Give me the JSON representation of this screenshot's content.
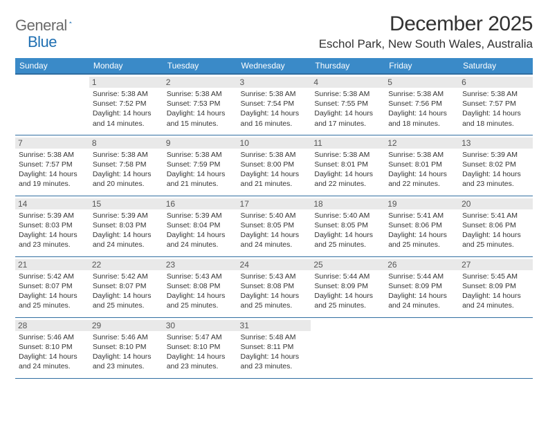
{
  "brand": {
    "part1": "General",
    "part2": "Blue"
  },
  "title": "December 2025",
  "location": "Eschol Park, New South Wales, Australia",
  "colors": {
    "header_bg": "#3a8ac8",
    "header_border": "#2f6da0",
    "daynum_bg": "#e9e9e9",
    "text": "#333333",
    "logo_gray": "#6a6a6a",
    "logo_blue": "#1f6fb2"
  },
  "weekdays": [
    "Sunday",
    "Monday",
    "Tuesday",
    "Wednesday",
    "Thursday",
    "Friday",
    "Saturday"
  ],
  "first_weekday_index": 1,
  "days": [
    {
      "n": 1,
      "sr": "5:38 AM",
      "ss": "7:52 PM",
      "dl": "14 hours and 14 minutes."
    },
    {
      "n": 2,
      "sr": "5:38 AM",
      "ss": "7:53 PM",
      "dl": "14 hours and 15 minutes."
    },
    {
      "n": 3,
      "sr": "5:38 AM",
      "ss": "7:54 PM",
      "dl": "14 hours and 16 minutes."
    },
    {
      "n": 4,
      "sr": "5:38 AM",
      "ss": "7:55 PM",
      "dl": "14 hours and 17 minutes."
    },
    {
      "n": 5,
      "sr": "5:38 AM",
      "ss": "7:56 PM",
      "dl": "14 hours and 18 minutes."
    },
    {
      "n": 6,
      "sr": "5:38 AM",
      "ss": "7:57 PM",
      "dl": "14 hours and 18 minutes."
    },
    {
      "n": 7,
      "sr": "5:38 AM",
      "ss": "7:57 PM",
      "dl": "14 hours and 19 minutes."
    },
    {
      "n": 8,
      "sr": "5:38 AM",
      "ss": "7:58 PM",
      "dl": "14 hours and 20 minutes."
    },
    {
      "n": 9,
      "sr": "5:38 AM",
      "ss": "7:59 PM",
      "dl": "14 hours and 21 minutes."
    },
    {
      "n": 10,
      "sr": "5:38 AM",
      "ss": "8:00 PM",
      "dl": "14 hours and 21 minutes."
    },
    {
      "n": 11,
      "sr": "5:38 AM",
      "ss": "8:01 PM",
      "dl": "14 hours and 22 minutes."
    },
    {
      "n": 12,
      "sr": "5:38 AM",
      "ss": "8:01 PM",
      "dl": "14 hours and 22 minutes."
    },
    {
      "n": 13,
      "sr": "5:39 AM",
      "ss": "8:02 PM",
      "dl": "14 hours and 23 minutes."
    },
    {
      "n": 14,
      "sr": "5:39 AM",
      "ss": "8:03 PM",
      "dl": "14 hours and 23 minutes."
    },
    {
      "n": 15,
      "sr": "5:39 AM",
      "ss": "8:03 PM",
      "dl": "14 hours and 24 minutes."
    },
    {
      "n": 16,
      "sr": "5:39 AM",
      "ss": "8:04 PM",
      "dl": "14 hours and 24 minutes."
    },
    {
      "n": 17,
      "sr": "5:40 AM",
      "ss": "8:05 PM",
      "dl": "14 hours and 24 minutes."
    },
    {
      "n": 18,
      "sr": "5:40 AM",
      "ss": "8:05 PM",
      "dl": "14 hours and 25 minutes."
    },
    {
      "n": 19,
      "sr": "5:41 AM",
      "ss": "8:06 PM",
      "dl": "14 hours and 25 minutes."
    },
    {
      "n": 20,
      "sr": "5:41 AM",
      "ss": "8:06 PM",
      "dl": "14 hours and 25 minutes."
    },
    {
      "n": 21,
      "sr": "5:42 AM",
      "ss": "8:07 PM",
      "dl": "14 hours and 25 minutes."
    },
    {
      "n": 22,
      "sr": "5:42 AM",
      "ss": "8:07 PM",
      "dl": "14 hours and 25 minutes."
    },
    {
      "n": 23,
      "sr": "5:43 AM",
      "ss": "8:08 PM",
      "dl": "14 hours and 25 minutes."
    },
    {
      "n": 24,
      "sr": "5:43 AM",
      "ss": "8:08 PM",
      "dl": "14 hours and 25 minutes."
    },
    {
      "n": 25,
      "sr": "5:44 AM",
      "ss": "8:09 PM",
      "dl": "14 hours and 25 minutes."
    },
    {
      "n": 26,
      "sr": "5:44 AM",
      "ss": "8:09 PM",
      "dl": "14 hours and 24 minutes."
    },
    {
      "n": 27,
      "sr": "5:45 AM",
      "ss": "8:09 PM",
      "dl": "14 hours and 24 minutes."
    },
    {
      "n": 28,
      "sr": "5:46 AM",
      "ss": "8:10 PM",
      "dl": "14 hours and 24 minutes."
    },
    {
      "n": 29,
      "sr": "5:46 AM",
      "ss": "8:10 PM",
      "dl": "14 hours and 23 minutes."
    },
    {
      "n": 30,
      "sr": "5:47 AM",
      "ss": "8:10 PM",
      "dl": "14 hours and 23 minutes."
    },
    {
      "n": 31,
      "sr": "5:48 AM",
      "ss": "8:11 PM",
      "dl": "14 hours and 23 minutes."
    }
  ],
  "labels": {
    "sunrise": "Sunrise:",
    "sunset": "Sunset:",
    "daylight": "Daylight:"
  }
}
